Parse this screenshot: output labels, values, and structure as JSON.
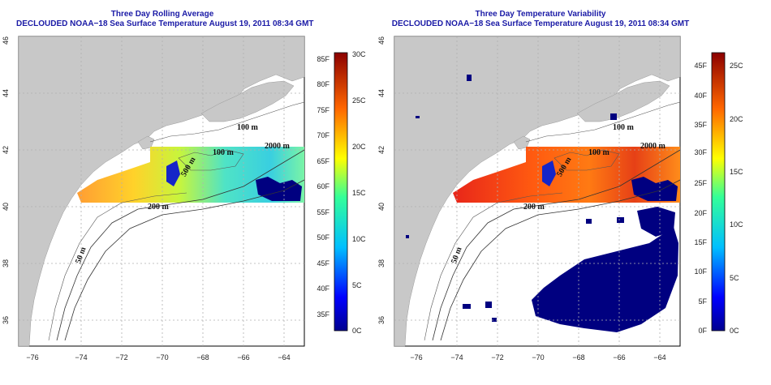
{
  "left": {
    "title_line1": "Three Day Rolling Average",
    "title_line2": "DECLOUDED NOAA−18 Sea Surface Temperature August 19, 2011 08:34 GMT",
    "colorbar_f": [
      "85F",
      "80F",
      "75F",
      "70F",
      "65F",
      "60F",
      "55F",
      "50F",
      "45F",
      "40F",
      "35F"
    ],
    "colorbar_c": [
      "30C",
      "25C",
      "20C",
      "15C",
      "10C",
      "5C",
      "0C"
    ]
  },
  "right": {
    "title_line1": "Three Day Temperature Variability",
    "title_line2": "DECLOUDED NOAA−18 Sea Surface Temperature August 19, 2011 08:34 GMT",
    "colorbar_f": [
      "45F",
      "40F",
      "35F",
      "30F",
      "25F",
      "20F",
      "15F",
      "10F",
      "5F",
      "0F"
    ],
    "colorbar_c": [
      "25C",
      "20C",
      "15C",
      "10C",
      "5C",
      "0C"
    ]
  },
  "axes": {
    "lon_ticks": [
      "−76",
      "−74",
      "−72",
      "−70",
      "−68",
      "−66",
      "−64"
    ],
    "lat_ticks": [
      "36",
      "38",
      "40",
      "42",
      "44",
      "46"
    ]
  },
  "depth_labels": [
    "100 m",
    "2000 m",
    "100 m",
    "500 m",
    "200 m",
    "50 m"
  ],
  "colors": {
    "title": "#1a1aa6",
    "land": "#c8c8c8",
    "cloud_mask": "#000080"
  }
}
